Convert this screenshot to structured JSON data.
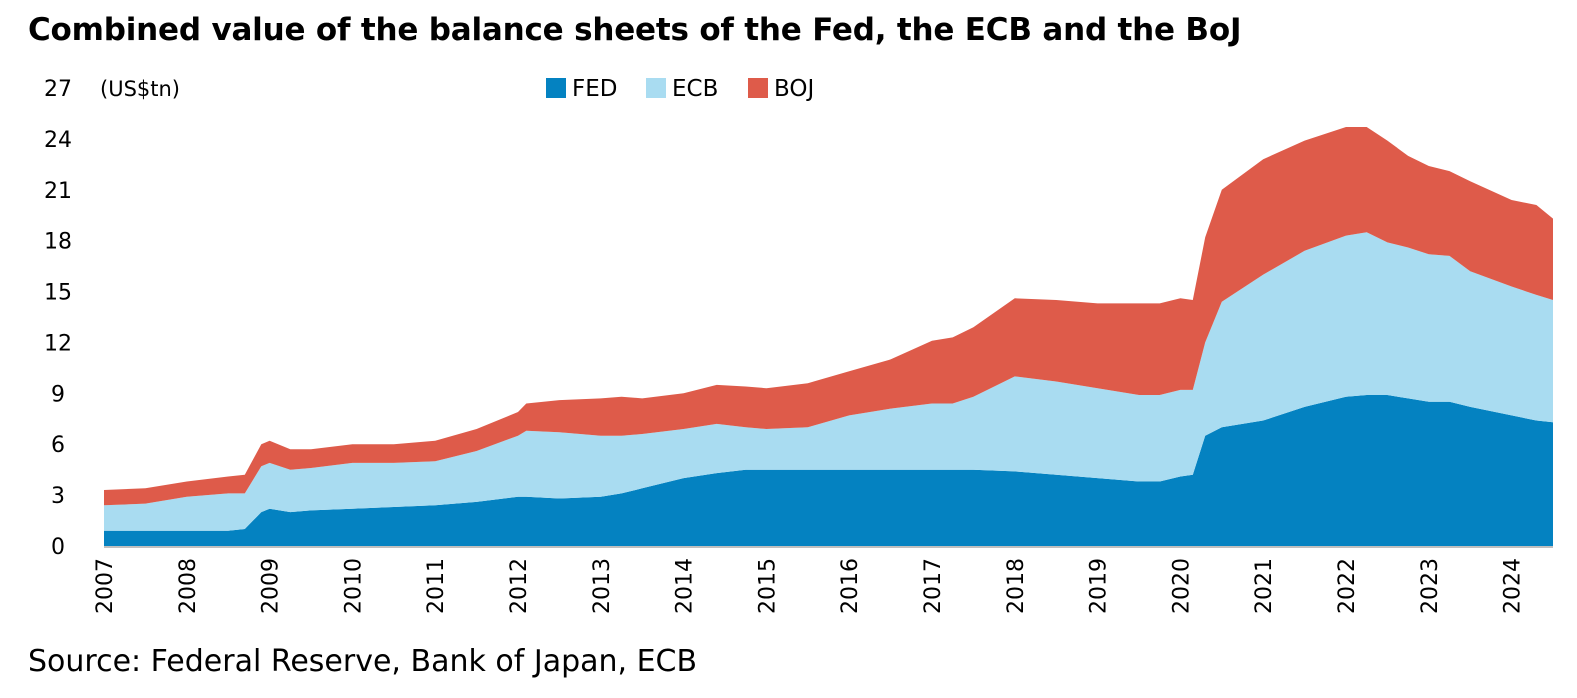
{
  "header": {
    "title": "Combined value of the balance sheets of the Fed, the ECB and the BoJ"
  },
  "footer": {
    "source": "Source: Federal Reserve, Bank of Japan, ECB"
  },
  "colors": {
    "FED": "#0482c1",
    "ECB": "#a9dcf1",
    "BOJ": "#de5b4a",
    "axis": "#bfbfbf"
  },
  "chart_data": {
    "type": "area",
    "stacked": true,
    "title": "Combined value of the balance sheets of the Fed, the ECB and the BoJ",
    "ylabel": "(US$tn)",
    "xlabel": "",
    "ylim": [
      0,
      27
    ],
    "yticks": [
      "0",
      "3",
      "6",
      "9",
      "12",
      "15",
      "18",
      "21",
      "24",
      "27"
    ],
    "xlim": [
      2007.0,
      2024.5
    ],
    "xticks": [
      "2007",
      "2008",
      "2009",
      "2010",
      "2011",
      "2012",
      "2013",
      "2014",
      "2015",
      "2016",
      "2017",
      "2018",
      "2019",
      "2020",
      "2021",
      "2022",
      "2023",
      "2024"
    ],
    "grid": false,
    "legend": "top-center",
    "x": [
      2007.0,
      2007.5,
      2008.0,
      2008.5,
      2008.7,
      2008.9,
      2009.0,
      2009.25,
      2009.5,
      2010.0,
      2010.5,
      2011.0,
      2011.5,
      2012.0,
      2012.1,
      2012.5,
      2013.0,
      2013.25,
      2013.5,
      2014.0,
      2014.4,
      2014.75,
      2015.0,
      2015.5,
      2016.0,
      2016.5,
      2017.0,
      2017.25,
      2017.5,
      2018.0,
      2018.5,
      2019.0,
      2019.5,
      2019.75,
      2020.0,
      2020.15,
      2020.3,
      2020.5,
      2021.0,
      2021.5,
      2022.0,
      2022.25,
      2022.5,
      2022.75,
      2023.0,
      2023.25,
      2023.5,
      2024.0,
      2024.3,
      2024.5
    ],
    "series": [
      {
        "name": "FED",
        "values": [
          0.9,
          0.9,
          0.9,
          0.9,
          1.0,
          2.0,
          2.2,
          2.0,
          2.1,
          2.2,
          2.3,
          2.4,
          2.6,
          2.9,
          2.9,
          2.8,
          2.9,
          3.1,
          3.4,
          4.0,
          4.3,
          4.5,
          4.5,
          4.5,
          4.5,
          4.5,
          4.5,
          4.5,
          4.5,
          4.4,
          4.2,
          4.0,
          3.8,
          3.8,
          4.1,
          4.2,
          6.5,
          7.0,
          7.4,
          8.2,
          8.8,
          8.9,
          8.9,
          8.7,
          8.5,
          8.5,
          8.2,
          7.7,
          7.4,
          7.3
        ]
      },
      {
        "name": "ECB",
        "values": [
          1.5,
          1.6,
          2.0,
          2.2,
          2.1,
          2.7,
          2.7,
          2.5,
          2.5,
          2.7,
          2.6,
          2.6,
          3.0,
          3.6,
          3.9,
          3.9,
          3.6,
          3.4,
          3.2,
          2.9,
          2.9,
          2.5,
          2.4,
          2.5,
          3.2,
          3.6,
          3.9,
          3.9,
          4.3,
          5.6,
          5.5,
          5.3,
          5.1,
          5.1,
          5.1,
          5.0,
          5.5,
          7.4,
          8.6,
          9.2,
          9.5,
          9.6,
          9.0,
          8.9,
          8.7,
          8.6,
          8.0,
          7.6,
          7.4,
          7.2
        ]
      },
      {
        "name": "BOJ",
        "values": [
          0.9,
          0.9,
          0.9,
          1.0,
          1.1,
          1.3,
          1.3,
          1.2,
          1.1,
          1.1,
          1.1,
          1.2,
          1.3,
          1.4,
          1.6,
          1.9,
          2.2,
          2.3,
          2.1,
          2.1,
          2.3,
          2.4,
          2.4,
          2.6,
          2.6,
          2.9,
          3.7,
          3.9,
          4.1,
          4.6,
          4.8,
          5.0,
          5.4,
          5.4,
          5.4,
          5.3,
          6.2,
          6.6,
          6.8,
          6.5,
          6.4,
          6.2,
          6.0,
          5.4,
          5.2,
          5.0,
          5.3,
          5.1,
          5.3,
          4.8
        ]
      }
    ]
  }
}
